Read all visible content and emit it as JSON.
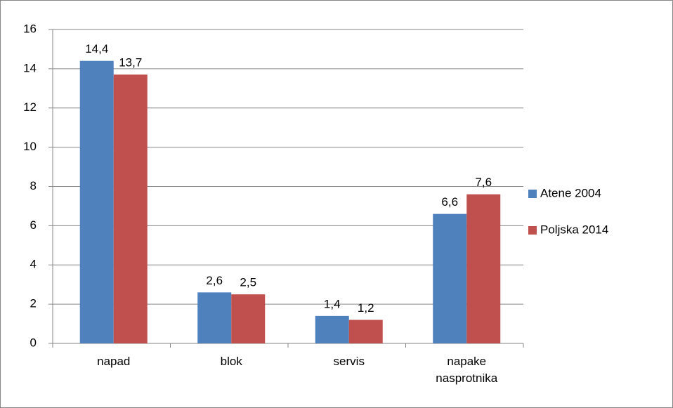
{
  "chart_data": {
    "type": "bar",
    "categories": [
      "napad",
      "blok",
      "servis",
      "napake nasprotnika"
    ],
    "series": [
      {
        "name": "Atene 2004",
        "color": "#4f81bd",
        "values": [
          14.4,
          2.6,
          1.4,
          6.6
        ],
        "value_labels": [
          "14,4",
          "2,6",
          "1,4",
          "6,6"
        ]
      },
      {
        "name": "Poljska 2014",
        "color": "#c0504d",
        "values": [
          13.7,
          2.5,
          1.2,
          7.6
        ],
        "value_labels": [
          "13,7",
          "2,5",
          "1,2",
          "7,6"
        ]
      }
    ],
    "ylim": [
      0,
      16
    ],
    "yticks": [
      0,
      2,
      4,
      6,
      8,
      10,
      12,
      14,
      16
    ],
    "grid": true,
    "legend": "right"
  }
}
